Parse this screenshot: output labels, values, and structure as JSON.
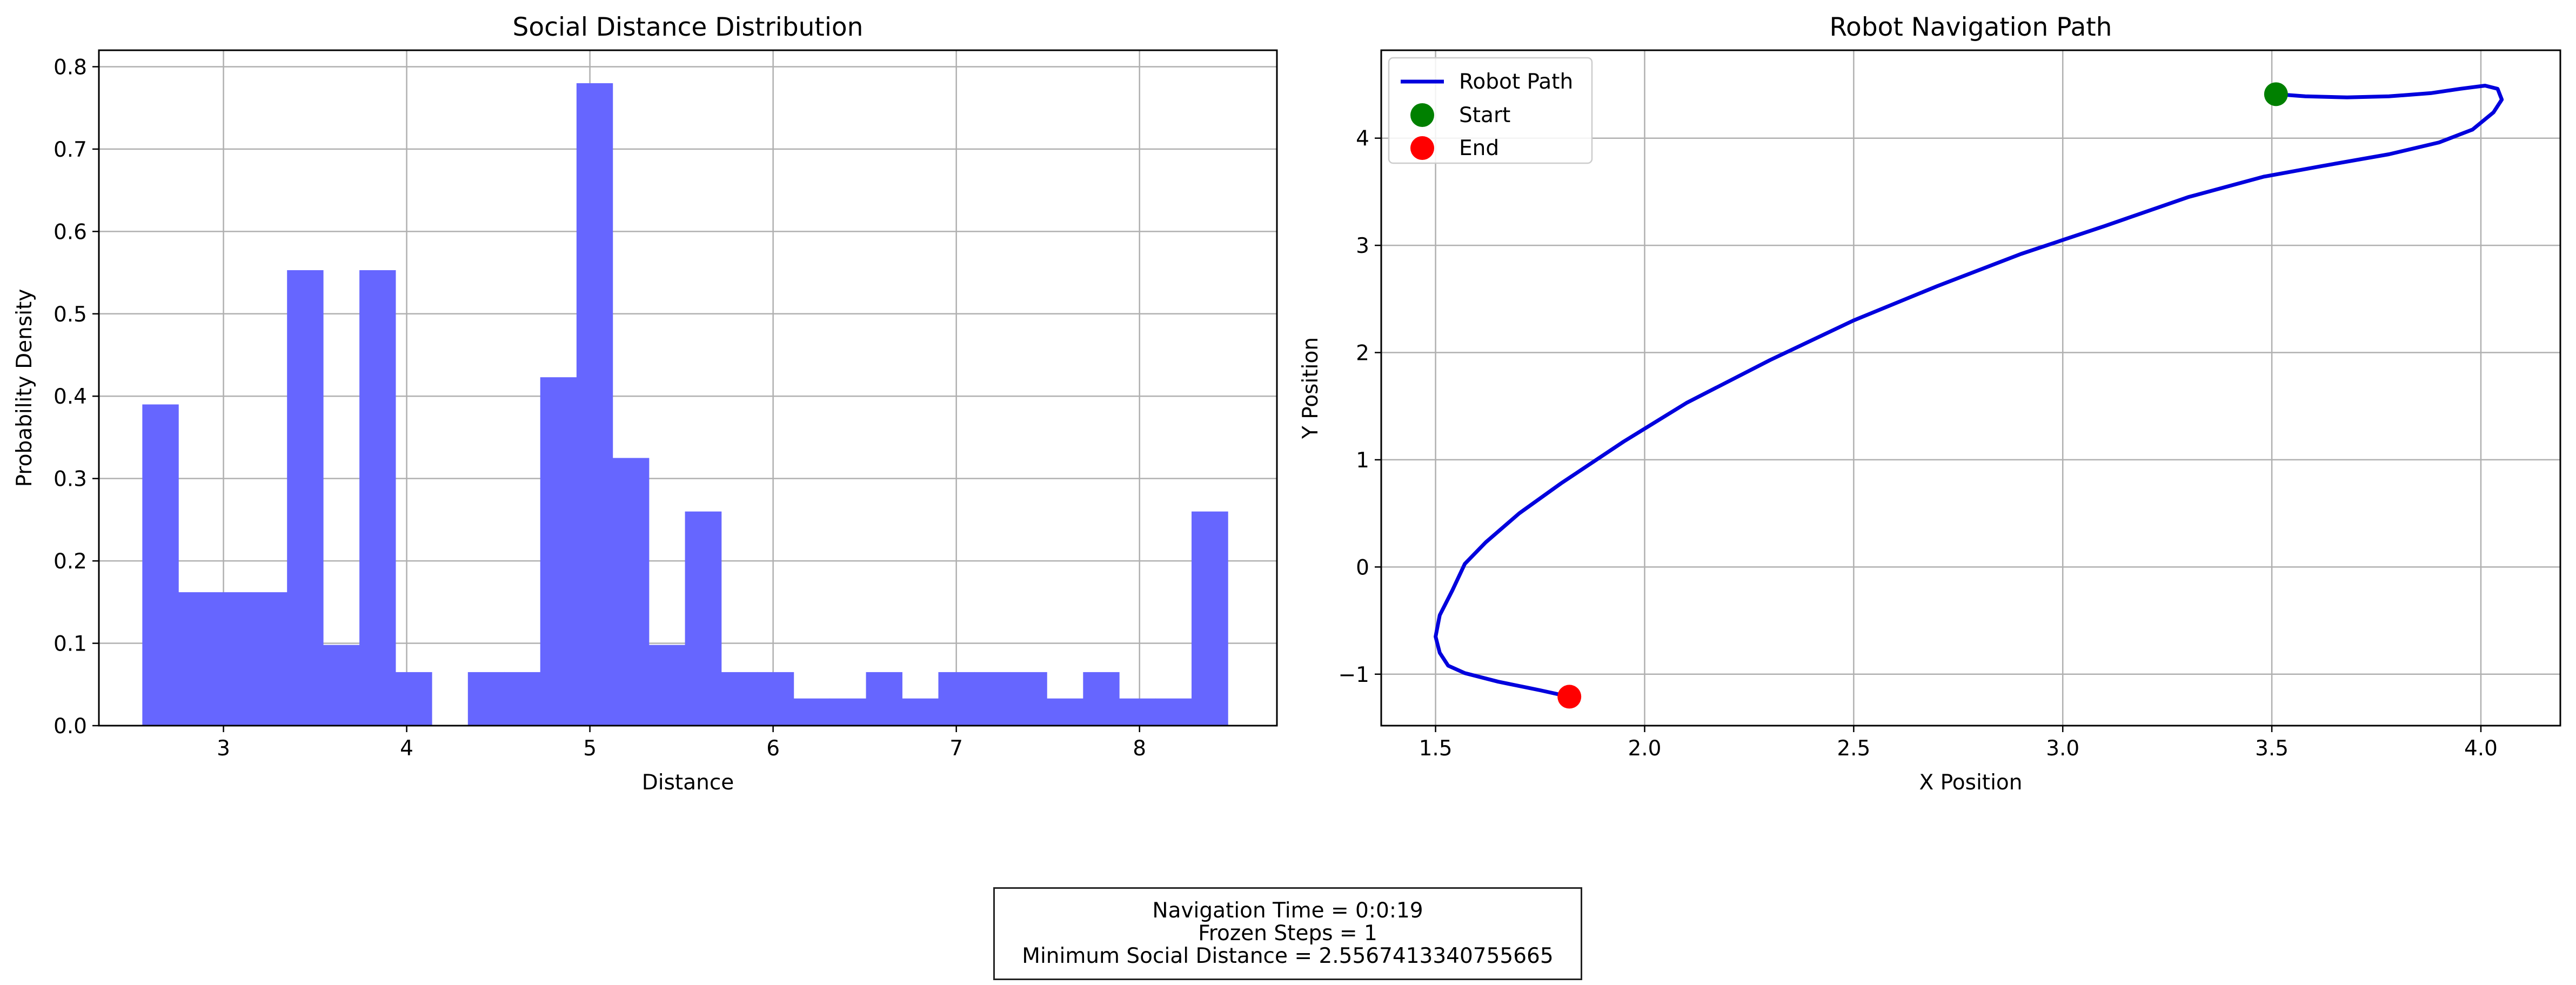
{
  "chart_data": [
    {
      "type": "bar",
      "title": "Social Distance Distribution",
      "xlabel": "Distance",
      "ylabel": "Probability Density",
      "xlim": [
        2.32,
        8.75
      ],
      "ylim": [
        0,
        0.82
      ],
      "xticks": [
        "3",
        "4",
        "5",
        "6",
        "7",
        "8"
      ],
      "yticks": [
        "0.0",
        "0.1",
        "0.2",
        "0.3",
        "0.4",
        "0.5",
        "0.6",
        "0.7",
        "0.8"
      ],
      "grid": true,
      "color": "#6666ff",
      "bin_edges": [
        2.557,
        2.754,
        2.952,
        3.149,
        3.347,
        3.544,
        3.742,
        3.939,
        4.137,
        4.334,
        4.532,
        4.729,
        4.927,
        5.124,
        5.322,
        5.519,
        5.717,
        5.914,
        6.112,
        6.309,
        6.507,
        6.704,
        6.902,
        7.099,
        7.297,
        7.494,
        7.692,
        7.889,
        8.087,
        8.284,
        8.482
      ],
      "values": [
        0.39,
        0.162,
        0.162,
        0.162,
        0.553,
        0.098,
        0.553,
        0.065,
        0,
        0.065,
        0.065,
        0.423,
        0.78,
        0.325,
        0.098,
        0.26,
        0.065,
        0.065,
        0.033,
        0.033,
        0.065,
        0.033,
        0.065,
        0.065,
        0.065,
        0.033,
        0.065,
        0.033,
        0.033,
        0.26
      ]
    },
    {
      "type": "line",
      "title": "Robot Navigation Path",
      "xlabel": "X Position",
      "ylabel": "Y Position",
      "xlim": [
        1.37,
        4.19
      ],
      "ylim": [
        -1.48,
        4.82
      ],
      "xticks": [
        "1.5",
        "2.0",
        "2.5",
        "3.0",
        "3.5",
        "4.0"
      ],
      "yticks": [
        "−1",
        "0",
        "1",
        "2",
        "3",
        "4"
      ],
      "grid": true,
      "legend_position": "top-left",
      "series": [
        {
          "name": "Robot Path",
          "color": "#0000dd",
          "x": [
            3.51,
            3.58,
            3.68,
            3.78,
            3.88,
            3.95,
            4.01,
            4.04,
            4.05,
            4.03,
            3.98,
            3.9,
            3.78,
            3.62,
            3.48,
            3.3,
            3.1,
            2.9,
            2.7,
            2.5,
            2.3,
            2.1,
            1.95,
            1.8,
            1.7,
            1.62,
            1.57,
            1.54,
            1.51,
            1.5,
            1.51,
            1.53,
            1.57,
            1.65,
            1.75,
            1.82
          ],
          "y": [
            4.41,
            4.39,
            4.38,
            4.39,
            4.42,
            4.46,
            4.49,
            4.46,
            4.36,
            4.24,
            4.08,
            3.96,
            3.85,
            3.74,
            3.64,
            3.45,
            3.18,
            2.92,
            2.62,
            2.3,
            1.93,
            1.53,
            1.17,
            0.78,
            0.5,
            0.23,
            0.03,
            -0.22,
            -0.45,
            -0.65,
            -0.8,
            -0.92,
            -0.99,
            -1.07,
            -1.15,
            -1.21
          ]
        }
      ],
      "markers": [
        {
          "name": "Start",
          "x": 3.51,
          "y": 4.41,
          "color": "#008000"
        },
        {
          "name": "End",
          "x": 1.82,
          "y": -1.21,
          "color": "#ff0000"
        }
      ]
    }
  ],
  "stats": {
    "line1": "Navigation Time = 0:0:19",
    "line2": "Frozen Steps = 1",
    "line3": "Minimum Social Distance = 2.5567413340755665"
  }
}
